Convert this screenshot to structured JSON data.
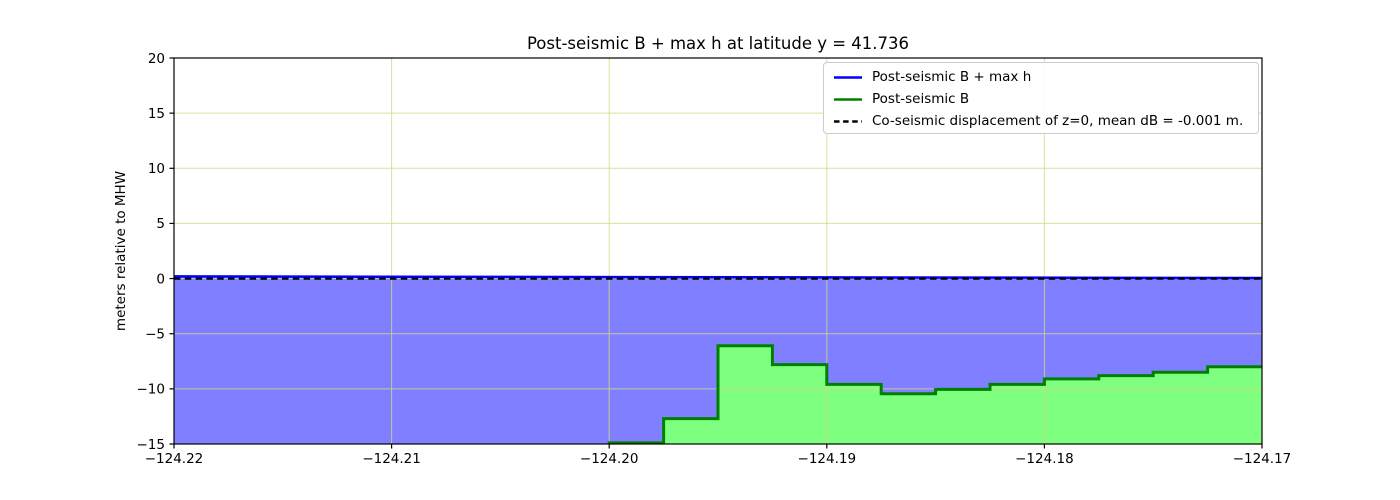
{
  "figure": {
    "background": "#ffffff",
    "plot_border_color": "#000000"
  },
  "chart_data": {
    "type": "line",
    "title": "Post-seismic B + max h at latitude y = 41.736",
    "xlabel": "",
    "ylabel": "meters relative to MHW",
    "xlim": [
      -124.22,
      -124.17
    ],
    "ylim": [
      -15,
      20
    ],
    "xticks": [
      -124.22,
      -124.21,
      -124.2,
      -124.19,
      -124.18,
      -124.17
    ],
    "xtick_labels": [
      "−124.22",
      "−124.21",
      "−124.20",
      "−124.19",
      "−124.18",
      "−124.17"
    ],
    "yticks": [
      -15,
      -10,
      -5,
      0,
      5,
      10,
      15,
      20
    ],
    "ytick_labels": [
      "−15",
      "−10",
      "−5",
      "0",
      "5",
      "10",
      "15",
      "20"
    ],
    "grid": true,
    "grid_color": "rgba(215,215,130,0.8)",
    "legend_position": "upper right",
    "series": [
      {
        "name": "Post-seismic B + max h",
        "type": "line",
        "color": "#0000ff",
        "linestyle": "solid",
        "linewidth": 2.5,
        "x": [
          -124.22,
          -124.17
        ],
        "y": [
          0.2,
          0.05
        ],
        "fill": {
          "mode": "between-next-series",
          "color": "#0000ff",
          "alpha": 0.5
        }
      },
      {
        "name": "Post-seismic B",
        "type": "steps",
        "color": "#008000",
        "linestyle": "solid",
        "linewidth": 3,
        "edges": [
          -124.22,
          -124.2,
          -124.1975,
          -124.195,
          -124.1925,
          -124.19,
          -124.1875,
          -124.185,
          -124.1825,
          -124.18,
          -124.1775,
          -124.175,
          -124.1725,
          -124.17
        ],
        "levels": [
          -15.5,
          -14.9,
          -12.7,
          -6.1,
          -7.8,
          -9.6,
          -10.45,
          -10.05,
          -9.6,
          -9.1,
          -8.8,
          -8.5,
          -8.0
        ],
        "fill": {
          "mode": "to-bottom",
          "color": "#00ff00",
          "alpha": 0.5
        }
      },
      {
        "name": "Co-seismic displacement of z=0, mean dB = -0.001 m.",
        "type": "line",
        "color": "#000000",
        "linestyle": "dashed",
        "linewidth": 2.2,
        "x": [
          -124.22,
          -124.17
        ],
        "y": [
          0,
          0
        ]
      }
    ]
  }
}
